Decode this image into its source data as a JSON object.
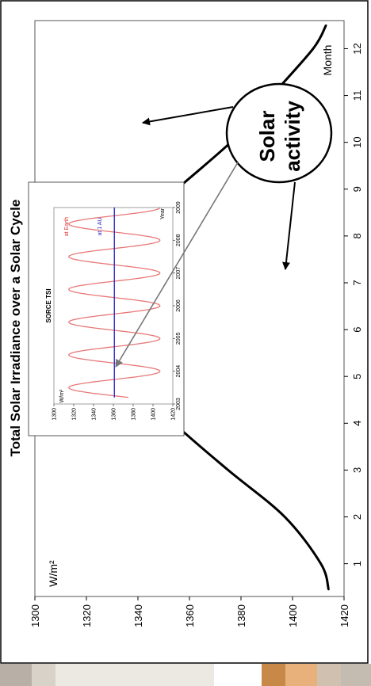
{
  "chart_data": {
    "type": "line",
    "title": "Total Solar Irradiance over a Solar Cycle",
    "ylabel": "W/m²",
    "xlabel": "Month",
    "ylim": [
      1300,
      1420
    ],
    "xlim": [
      0.3,
      12.6
    ],
    "y_ticks": [
      "1300",
      "1320",
      "1340",
      "1360",
      "1380",
      "1400",
      "1420"
    ],
    "x_ticks": [
      "1",
      "2",
      "3",
      "4",
      "5",
      "6",
      "7",
      "8",
      "9",
      "10",
      "11",
      "12"
    ],
    "grid": false,
    "orientation": "rotated 90 degrees clockwise (y axis along the bottom, months increasing upward)",
    "series": [
      {
        "color": "#000000",
        "x": [
          0.45,
          1.0,
          2.0,
          3.0,
          4.0,
          5.0,
          6.0,
          6.6,
          7.0,
          7.5,
          8.0,
          9.0,
          10.0,
          10.5,
          11.0,
          12.0,
          12.5
        ],
        "y": [
          1414,
          1411,
          1397,
          1375,
          1354,
          1336,
          1324,
          1320,
          1322,
          1326,
          1333,
          1355,
          1376,
          1384,
          1392,
          1408,
          1413
        ]
      }
    ],
    "annotations": [
      {
        "text_lines": [
          "Solar",
          "activity"
        ],
        "arrows": [
          "to curve near month 10.3 (about 1383 W/m²)",
          "to curve near month 7.5 (about 1324 W/m²)",
          "grey arrow into inset chart"
        ]
      }
    ],
    "inset": {
      "title": "SORCE TSI",
      "ylabel": "W/m²",
      "xlabel": "Year",
      "ylim": [
        1300,
        1420
      ],
      "y_ticks": [
        "1300",
        "1320",
        "1340",
        "1360",
        "1380",
        "1400",
        "1420"
      ],
      "x_ticks": [
        "2003",
        "2004",
        "2005",
        "2006",
        "2007",
        "2008",
        "2009"
      ],
      "legend": [
        {
          "name": "at Earth",
          "color": "#e03030"
        },
        {
          "name": "at 1 AU",
          "color": "#2020c0"
        }
      ],
      "series": [
        {
          "name": "at Earth",
          "color": "#e87878",
          "x_start": 2003.2,
          "x_end": 2009.0,
          "mean": 1361,
          "amplitude": 46,
          "period_years": 1
        },
        {
          "name": "at 1 AU",
          "color": "#2020c0",
          "x_start": 2003.2,
          "x_end": 2009.0,
          "values": [
            1361,
            1361
          ]
        }
      ]
    }
  }
}
